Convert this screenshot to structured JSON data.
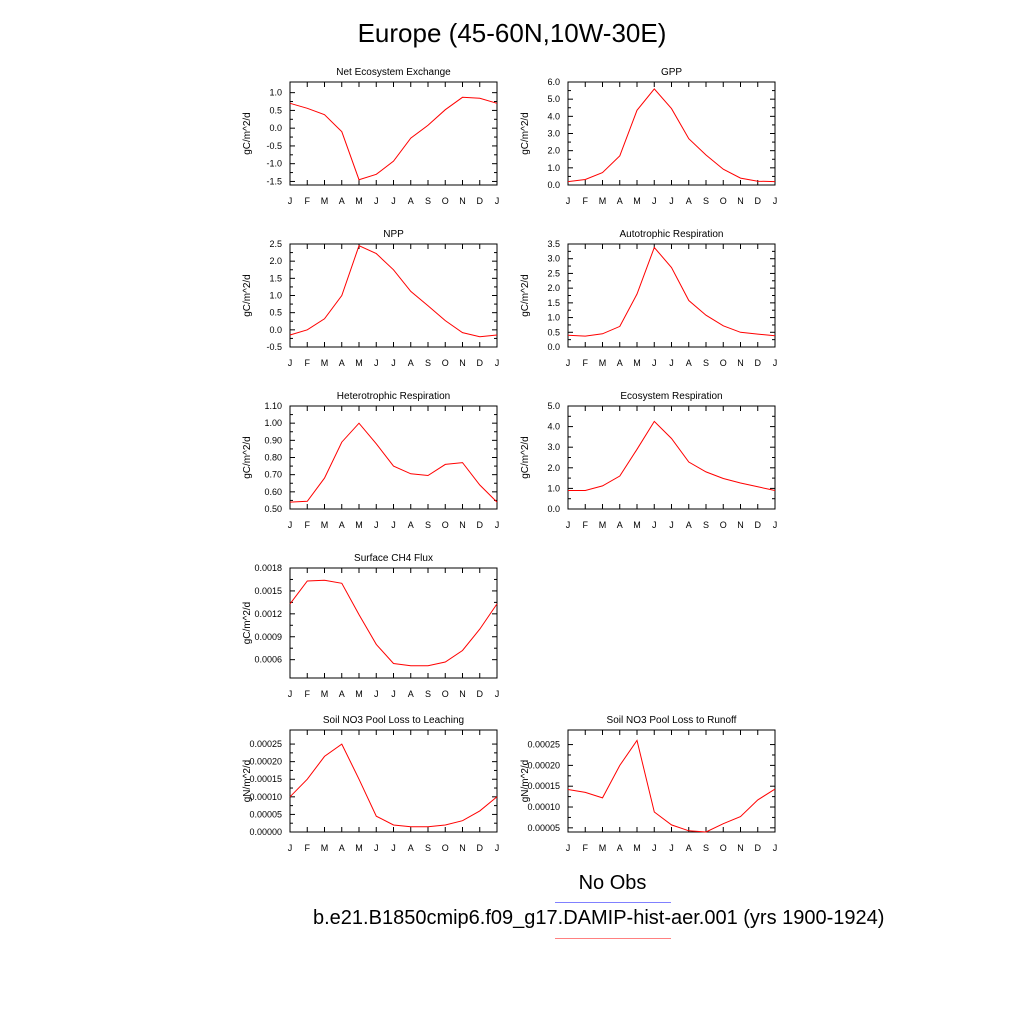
{
  "figure": {
    "title": "Europe (45-60N,10W-30E)",
    "legend": {
      "obs_label": "No Obs",
      "obs_color": "#8080ff",
      "model_label": "b.e21.B1850cmip6.f09_g17.DAMIP-hist-aer.001 (yrs 1900-1924)",
      "model_color": "#ff8080"
    },
    "line_color": "#ff0000"
  },
  "chart_data": [
    {
      "type": "line",
      "title": "Net Ecosystem Exchange",
      "ylabel": "gC/m^2/d",
      "categories": [
        "J",
        "F",
        "M",
        "A",
        "M",
        "J",
        "J",
        "A",
        "S",
        "O",
        "N",
        "D",
        "J"
      ],
      "values": [
        0.7,
        0.56,
        0.38,
        -0.1,
        -1.45,
        -1.3,
        -0.93,
        -0.28,
        0.08,
        0.52,
        0.87,
        0.84,
        0.7
      ],
      "ylim": [
        -1.6,
        1.3
      ],
      "yticks": [
        1.0,
        0.5,
        0.0,
        -0.5,
        -1.0,
        -1.5
      ],
      "yticklabels": [
        "1.0",
        "0.5",
        "0.0",
        "-0.5",
        "-1.0",
        "-1.5"
      ]
    },
    {
      "type": "line",
      "title": "GPP",
      "ylabel": "gC/m^2/d",
      "categories": [
        "J",
        "F",
        "M",
        "A",
        "M",
        "J",
        "J",
        "A",
        "S",
        "O",
        "N",
        "D",
        "J"
      ],
      "values": [
        0.2,
        0.32,
        0.72,
        1.7,
        4.35,
        5.6,
        4.45,
        2.7,
        1.75,
        0.92,
        0.4,
        0.22,
        0.2
      ],
      "ylim": [
        0.0,
        6.0
      ],
      "yticks": [
        6.0,
        5.0,
        4.0,
        3.0,
        2.0,
        1.0,
        0.0
      ],
      "yticklabels": [
        "6.0",
        "5.0",
        "4.0",
        "3.0",
        "2.0",
        "1.0",
        "0.0"
      ]
    },
    {
      "type": "line",
      "title": "NPP",
      "ylabel": "gC/m^2/d",
      "categories": [
        "J",
        "F",
        "M",
        "A",
        "M",
        "J",
        "J",
        "A",
        "S",
        "O",
        "N",
        "D",
        "J"
      ],
      "values": [
        -0.15,
        0.0,
        0.32,
        1.0,
        2.45,
        2.22,
        1.75,
        1.12,
        0.7,
        0.27,
        -0.08,
        -0.2,
        -0.15
      ],
      "ylim": [
        -0.5,
        2.5
      ],
      "yticks": [
        2.5,
        2.0,
        1.5,
        1.0,
        0.5,
        0.0,
        -0.5
      ],
      "yticklabels": [
        "2.5",
        "2.0",
        "1.5",
        "1.0",
        "0.5",
        "0.0",
        "-0.5"
      ]
    },
    {
      "type": "line",
      "title": "Autotrophic Respiration",
      "ylabel": "gC/m^2/d",
      "categories": [
        "J",
        "F",
        "M",
        "A",
        "M",
        "J",
        "J",
        "A",
        "S",
        "O",
        "N",
        "D",
        "J"
      ],
      "values": [
        0.4,
        0.37,
        0.45,
        0.7,
        1.8,
        3.38,
        2.7,
        1.58,
        1.08,
        0.72,
        0.5,
        0.44,
        0.38
      ],
      "ylim": [
        0.0,
        3.5
      ],
      "yticks": [
        3.5,
        3.0,
        2.5,
        2.0,
        1.5,
        1.0,
        0.5,
        0.0
      ],
      "yticklabels": [
        "3.5",
        "3.0",
        "2.5",
        "2.0",
        "1.5",
        "1.0",
        "0.5",
        "0.0"
      ]
    },
    {
      "type": "line",
      "title": "Heterotrophic Respiration",
      "ylabel": "gC/m^2/d",
      "categories": [
        "J",
        "F",
        "M",
        "A",
        "M",
        "J",
        "J",
        "A",
        "S",
        "O",
        "N",
        "D",
        "J"
      ],
      "values": [
        0.54,
        0.545,
        0.68,
        0.89,
        1.0,
        0.88,
        0.75,
        0.705,
        0.695,
        0.76,
        0.77,
        0.64,
        0.54
      ],
      "ylim": [
        0.5,
        1.1
      ],
      "yticks": [
        1.1,
        1.0,
        0.9,
        0.8,
        0.7,
        0.6,
        0.5
      ],
      "yticklabels": [
        "1.10",
        "1.00",
        "0.90",
        "0.80",
        "0.70",
        "0.60",
        "0.50"
      ]
    },
    {
      "type": "line",
      "title": "Ecosystem Respiration",
      "ylabel": "gC/m^2/d",
      "categories": [
        "J",
        "F",
        "M",
        "A",
        "M",
        "J",
        "J",
        "A",
        "S",
        "O",
        "N",
        "D",
        "J"
      ],
      "values": [
        0.9,
        0.9,
        1.12,
        1.6,
        2.9,
        4.25,
        3.42,
        2.28,
        1.8,
        1.48,
        1.26,
        1.08,
        0.9
      ],
      "ylim": [
        0.0,
        5.0
      ],
      "yticks": [
        5.0,
        4.0,
        3.0,
        2.0,
        1.0,
        0.0
      ],
      "yticklabels": [
        "5.0",
        "4.0",
        "3.0",
        "2.0",
        "1.0",
        "0.0"
      ]
    },
    {
      "type": "line",
      "title": "Surface CH4 Flux",
      "ylabel": "gC/m^2/d",
      "categories": [
        "J",
        "F",
        "M",
        "A",
        "M",
        "J",
        "J",
        "A",
        "S",
        "O",
        "N",
        "D",
        "J"
      ],
      "values": [
        0.00133,
        0.00163,
        0.00164,
        0.0016,
        0.00119,
        0.0008,
        0.00055,
        0.00052,
        0.00052,
        0.00057,
        0.00072,
        0.001,
        0.00133
      ],
      "ylim": [
        0.00036,
        0.0018
      ],
      "yticks": [
        0.0018,
        0.0015,
        0.0012,
        0.0009,
        0.0006
      ],
      "yticklabels": [
        "0.0018",
        "0.0015",
        "0.0012",
        "0.0009",
        "0.0006"
      ]
    },
    {
      "type": "line",
      "title": "Soil NO3 Pool Loss to Leaching",
      "ylabel": "gN/m^2/d",
      "categories": [
        "J",
        "F",
        "M",
        "A",
        "M",
        "J",
        "J",
        "A",
        "S",
        "O",
        "N",
        "D",
        "J"
      ],
      "values": [
        0.0001,
        0.00015,
        0.000215,
        0.00025,
        0.00015,
        4.5e-05,
        2e-05,
        1.5e-05,
        1.5e-05,
        2e-05,
        3.2e-05,
        6e-05,
        0.0001
      ],
      "ylim": [
        0.0,
        0.00029
      ],
      "yticks": [
        0.00025,
        0.0002,
        0.00015,
        0.0001,
        5e-05,
        0.0
      ],
      "yticklabels": [
        "0.00025",
        "0.00020",
        "0.00015",
        "0.00010",
        "0.00005",
        "0.00000"
      ]
    },
    {
      "type": "line",
      "title": "Soil NO3 Pool Loss to Runoff",
      "ylabel": "gN/m^2/d",
      "categories": [
        "J",
        "F",
        "M",
        "A",
        "M",
        "J",
        "J",
        "A",
        "S",
        "O",
        "N",
        "D",
        "J"
      ],
      "values": [
        0.000142,
        0.000135,
        0.000122,
        0.0002,
        0.00026,
        8.8e-05,
        5.7e-05,
        4.3e-05,
        4e-05,
        6e-05,
        7.7e-05,
        0.000117,
        0.000143
      ],
      "ylim": [
        4e-05,
        0.000285
      ],
      "yticks": [
        0.00025,
        0.0002,
        0.00015,
        0.0001,
        5e-05
      ],
      "yticklabels": [
        "0.00025",
        "0.00020",
        "0.00015",
        "0.00010",
        "0.00005"
      ]
    }
  ]
}
